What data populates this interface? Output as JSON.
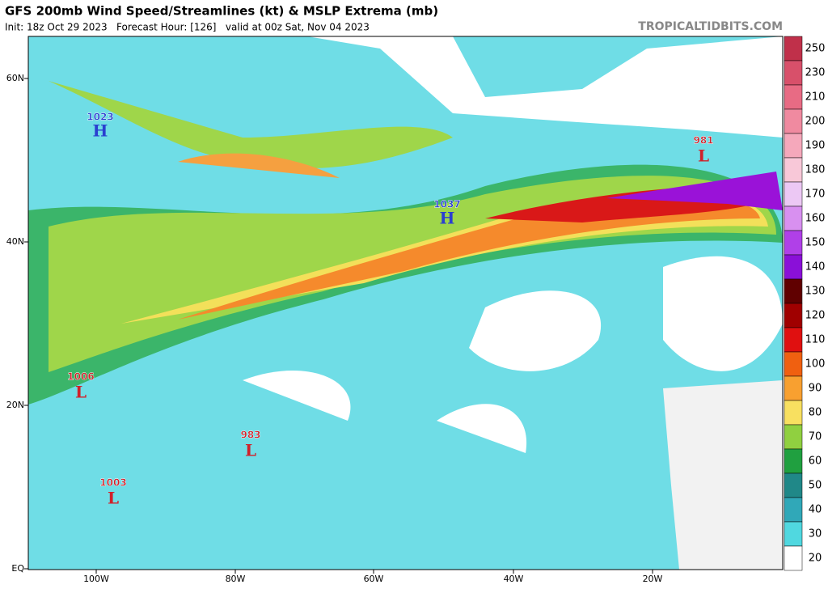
{
  "header": {
    "title": "GFS 200mb Wind Speed/Streamlines (kt) & MSLP Extrema (mb)",
    "subtitle": "Init: 18z Oct 29 2023   Forecast Hour: [126]   valid at 00z Sat, Nov 04 2023",
    "credit": "TROPICALTIDBITS.COM"
  },
  "map": {
    "lat_labels": [
      "60N",
      "40N",
      "20N",
      "EQ"
    ],
    "lon_labels": [
      "100W",
      "80W",
      "60W",
      "40W",
      "20W"
    ],
    "extrema": [
      {
        "value": "1023",
        "type": "H",
        "color": "#2a3fd0"
      },
      {
        "value": "1037",
        "type": "H",
        "color": "#2a3fd0"
      },
      {
        "value": "981",
        "type": "L",
        "color": "#d0202a"
      },
      {
        "value": "1006",
        "type": "L",
        "color": "#d0202a"
      },
      {
        "value": "983",
        "type": "L",
        "color": "#d0202a"
      },
      {
        "value": "1003",
        "type": "L",
        "color": "#d0202a"
      }
    ]
  },
  "colorbar": {
    "levels": [
      250,
      230,
      210,
      200,
      190,
      180,
      170,
      160,
      150,
      140,
      130,
      120,
      110,
      100,
      90,
      80,
      70,
      60,
      50,
      40,
      30,
      20
    ],
    "colors": [
      "#c0304a",
      "#d8506a",
      "#e86b84",
      "#f08aa0",
      "#f5a8bb",
      "#f8c8d8",
      "#ecc8f4",
      "#d890f0",
      "#b040e8",
      "#8a10d8",
      "#600000",
      "#a00000",
      "#e01010",
      "#f06010",
      "#f8a030",
      "#f8e060",
      "#90d040",
      "#20a040",
      "#208888",
      "#30a8b8",
      "#50d8e0",
      "#ffffff"
    ]
  }
}
